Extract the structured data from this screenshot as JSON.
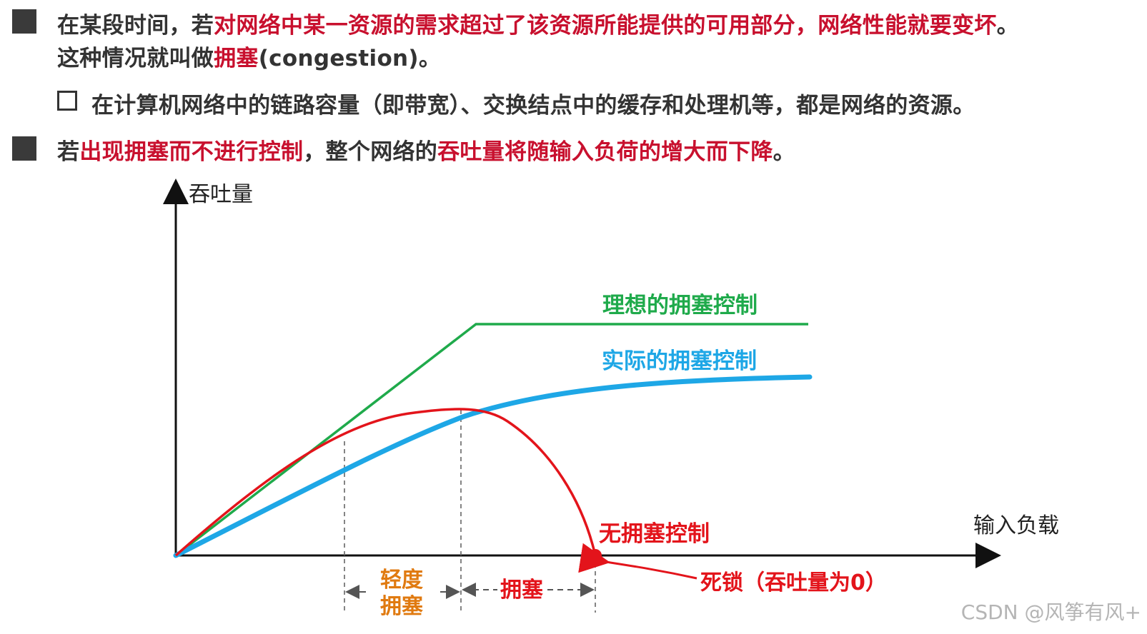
{
  "text": {
    "p1": [
      {
        "t": "在某段时间，若",
        "red": false
      },
      {
        "t": "对网络中某一资源的需求超过了该资源所能提供的可用部分，网络性能就要变坏",
        "red": true
      },
      {
        "t": "。",
        "red": false
      }
    ],
    "p1b": [
      {
        "t": "这种情况就叫做",
        "red": false
      },
      {
        "t": "拥塞",
        "red": true
      },
      {
        "t": "(congestion)。",
        "red": false
      }
    ],
    "sub": "在计算机网络中的链路容量（即带宽）、交换结点中的缓存和处理机等，都是网络的资源。",
    "p2": [
      {
        "t": "若",
        "red": false
      },
      {
        "t": "出现拥塞而不进行控制",
        "red": true
      },
      {
        "t": "，整个网络的",
        "red": false
      },
      {
        "t": "吞吐量将随输入负荷的增大而下降",
        "red": true
      },
      {
        "t": "。",
        "red": false
      }
    ]
  },
  "diagram": {
    "y_axis_label": "吞吐量",
    "x_axis_label": "输入负载",
    "curve_ideal_label": "理想的拥塞控制",
    "curve_actual_label": "实际的拥塞控制",
    "curve_none_label": "无拥塞控制",
    "deadlock_label": "死锁（吞吐量为0）",
    "region_light_line1": "轻度",
    "region_light_line2": "拥塞",
    "region_congestion": "拥塞",
    "colors": {
      "ideal": "#1faa4b",
      "actual": "#1ea7e6",
      "none": "#e3141b",
      "region": "#e07a10",
      "axis": "#111111"
    }
  },
  "watermark": "CSDN @风筝有风+"
}
